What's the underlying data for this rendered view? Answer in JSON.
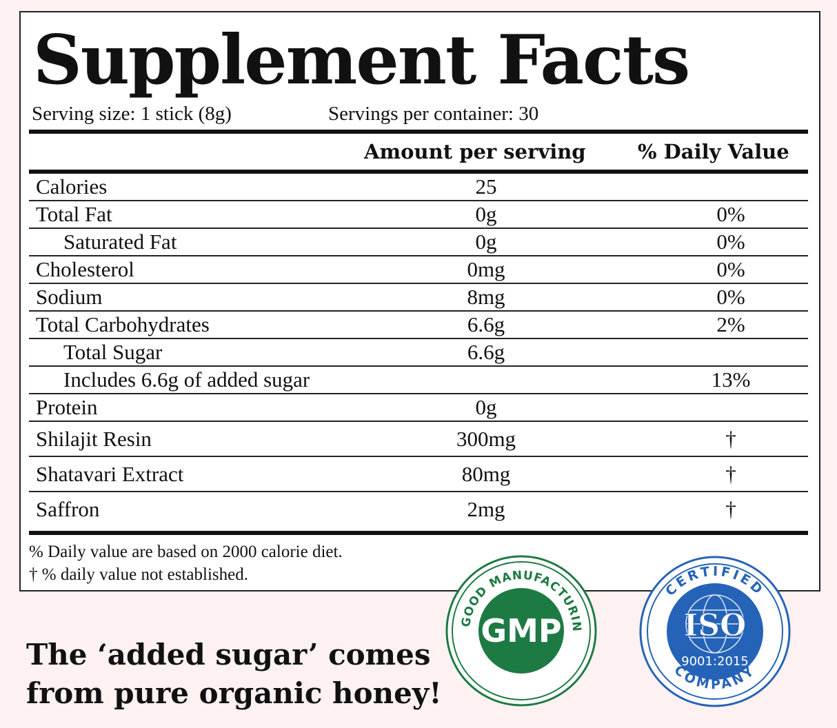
{
  "panel": {
    "title": "Supplement Facts",
    "serving_size": "Serving size: 1 stick (8g)",
    "servings_per_container": "Servings per container: 30",
    "header_amount": "Amount per serving",
    "header_dv": "% Daily Value",
    "rows": [
      {
        "name": "Calories",
        "amount": "25",
        "dv": "",
        "indent": false
      },
      {
        "name": "Total Fat",
        "amount": "0g",
        "dv": "0%",
        "indent": false
      },
      {
        "name": "Saturated Fat",
        "amount": "0g",
        "dv": "0%",
        "indent": true
      },
      {
        "name": "Cholesterol",
        "amount": "0mg",
        "dv": "0%",
        "indent": false
      },
      {
        "name": "Sodium",
        "amount": "8mg",
        "dv": "0%",
        "indent": false
      },
      {
        "name": "Total Carbohydrates",
        "amount": "6.6g",
        "dv": "2%",
        "indent": false
      },
      {
        "name": "Total Sugar",
        "amount": "6.6g",
        "dv": "",
        "indent": true
      },
      {
        "name": "Includes 6.6g of added sugar",
        "amount": "",
        "dv": "13%",
        "indent": true
      },
      {
        "name": "Protein",
        "amount": "0g",
        "dv": "",
        "indent": false
      },
      {
        "name": "Shilajit Resin",
        "amount": "300mg",
        "dv": "†",
        "indent": false
      },
      {
        "name": "Shatavari Extract",
        "amount": "80mg",
        "dv": "†",
        "indent": false
      },
      {
        "name": "Saffron",
        "amount": "2mg",
        "dv": "†",
        "indent": false
      }
    ],
    "footnote_1": "% Daily value are based on 2000 calorie diet.",
    "footnote_2": "†  % daily value not established."
  },
  "tagline": {
    "line1": "The ‘added sugar’ comes",
    "line2": "from pure organic honey!"
  },
  "badges": {
    "gmp": {
      "center_text": "GMP",
      "ring_text": "GOOD MANUFACTURING PRACTICE",
      "color": "#1e7a43"
    },
    "iso": {
      "top_text": "CERTIFIED",
      "center_text": "ISO",
      "standard": "9001:2015",
      "bottom_text": "COMPANY",
      "color": "#2563b8"
    }
  }
}
